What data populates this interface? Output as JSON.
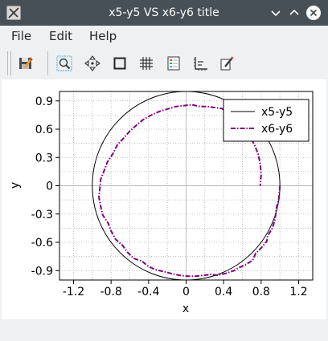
{
  "window": {
    "title": "x5-y5 VS x6-y6 title",
    "app_icon": "matplotlib-figure-icon",
    "controls": [
      "minimize-icon",
      "maximize-icon",
      "close-icon"
    ]
  },
  "menu": {
    "items": [
      "File",
      "Edit",
      "Help"
    ]
  },
  "toolbar": {
    "buttons": [
      "save-figure-icon",
      "zoom-icon",
      "pan-icon",
      "autoscale-icon",
      "grid-icon",
      "legend-icon",
      "axes-icon",
      "edit-icon"
    ]
  },
  "colors": {
    "titlebar": "#475057",
    "window_bg": "#eff0f1",
    "plot_bg": "#ffffff",
    "series_circle": "#000000",
    "series_noisy": "#800080"
  },
  "statusbar": {
    "text": ""
  },
  "chart_data": {
    "type": "line",
    "title": "",
    "xlabel": "x",
    "ylabel": "y",
    "xlim": [
      -1.35,
      1.35
    ],
    "ylim": [
      -1.0,
      1.0
    ],
    "xticks": [
      "-1.2",
      "-0.8",
      "-0.4",
      "0",
      "0.4",
      "0.8",
      "1.2"
    ],
    "xtick_values": [
      -1.2,
      -0.8,
      -0.4,
      0,
      0.4,
      0.8,
      1.2
    ],
    "yticks": [
      "0.9",
      "0.6",
      "0.3",
      "0",
      "-0.3",
      "-0.6",
      "-0.9"
    ],
    "ytick_values": [
      0.9,
      0.6,
      0.3,
      0,
      -0.3,
      -0.6,
      -0.9
    ],
    "grid": true,
    "minor_grid": true,
    "legend_position": "top-right",
    "series": [
      {
        "name": "x5-y5",
        "style": "solid",
        "color": "#000000",
        "circle": {
          "cx": 0,
          "cy": 0,
          "r": 1.0
        }
      },
      {
        "name": "x6-y6",
        "style": "dash-dot",
        "color": "#800080",
        "x": [
          1.0,
          0.99,
          0.96,
          0.95,
          0.92,
          0.87,
          0.86,
          0.8,
          0.74,
          0.71,
          0.63,
          0.56,
          0.51,
          0.42,
          0.33,
          0.27,
          0.19,
          0.1,
          0.02,
          -0.07,
          -0.16,
          -0.24,
          -0.33,
          -0.41,
          -0.47,
          -0.56,
          -0.63,
          -0.68,
          -0.75,
          -0.8,
          -0.83,
          -0.89,
          -0.91,
          -0.93,
          -0.92,
          -0.91,
          -0.87,
          -0.84,
          -0.78,
          -0.73,
          -0.68,
          -0.6,
          -0.52,
          -0.46,
          -0.37,
          -0.28,
          -0.21,
          -0.11,
          -0.02,
          0.06,
          0.15,
          0.23,
          0.3,
          0.38,
          0.44,
          0.52,
          0.57,
          0.61,
          0.67,
          0.7,
          0.74,
          0.77,
          0.79,
          0.8,
          0.79
        ],
        "y": [
          0.0,
          -0.13,
          -0.25,
          -0.35,
          -0.45,
          -0.53,
          -0.59,
          -0.66,
          -0.72,
          -0.79,
          -0.84,
          -0.87,
          -0.9,
          -0.93,
          -0.95,
          -0.94,
          -0.95,
          -0.96,
          -0.96,
          -0.95,
          -0.93,
          -0.91,
          -0.89,
          -0.85,
          -0.8,
          -0.77,
          -0.7,
          -0.63,
          -0.57,
          -0.48,
          -0.4,
          -0.31,
          -0.22,
          -0.12,
          -0.03,
          0.07,
          0.17,
          0.25,
          0.34,
          0.44,
          0.49,
          0.58,
          0.65,
          0.7,
          0.75,
          0.79,
          0.81,
          0.84,
          0.85,
          0.86,
          0.84,
          0.84,
          0.83,
          0.82,
          0.78,
          0.73,
          0.69,
          0.62,
          0.56,
          0.49,
          0.41,
          0.33,
          0.23,
          0.12,
          0.0
        ]
      }
    ]
  }
}
